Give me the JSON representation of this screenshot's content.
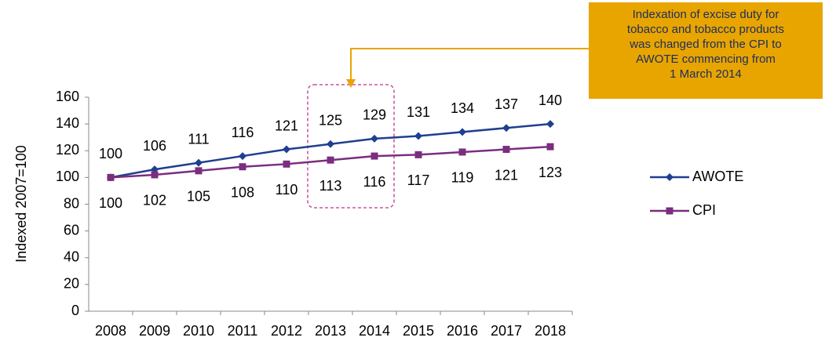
{
  "chart_data": {
    "type": "line",
    "y_label": "Indexed 2007=100",
    "categories": [
      "2008",
      "2009",
      "2010",
      "2011",
      "2012",
      "2013",
      "2014",
      "2015",
      "2016",
      "2017",
      "2018"
    ],
    "series": [
      {
        "name": "AWOTE",
        "color": "#1f3f8f",
        "marker": "diamond",
        "label_position": "above",
        "values": [
          100,
          106,
          111,
          116,
          121,
          125,
          129,
          131,
          134,
          137,
          140
        ]
      },
      {
        "name": "CPI",
        "color": "#7b2d7f",
        "marker": "square",
        "label_position": "below",
        "values": [
          100,
          102,
          105,
          108,
          110,
          113,
          116,
          117,
          119,
          121,
          123
        ]
      }
    ],
    "ylim": [
      0,
      160
    ],
    "yticks": [
      0,
      20,
      40,
      60,
      80,
      100,
      120,
      140,
      160
    ],
    "grid": false,
    "legend": "right",
    "annotation": {
      "lines": [
        "Indexation of excise duty for",
        "tobacco and tobacco products",
        "was changed from the CPI to",
        "AWOTE commencing from",
        "1 March 2014"
      ],
      "color": "#e8a500"
    }
  }
}
